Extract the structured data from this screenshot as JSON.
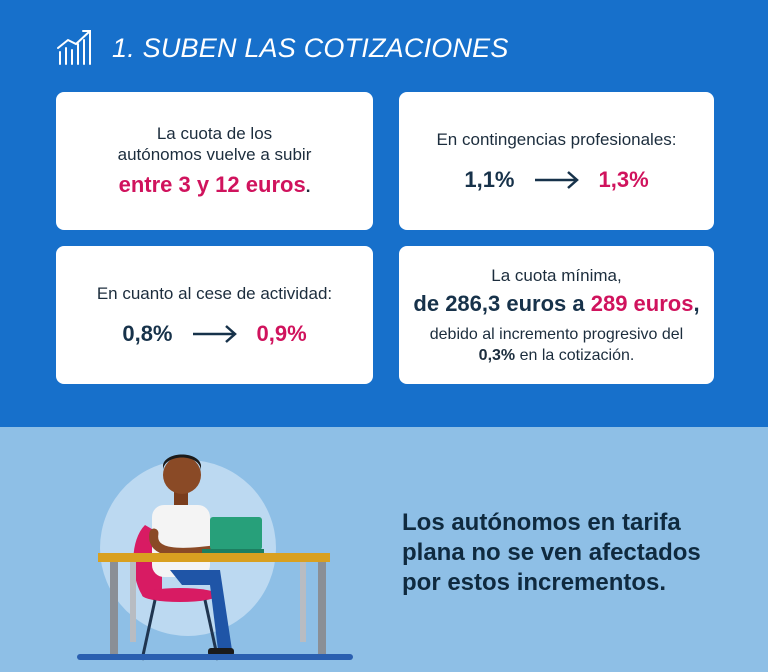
{
  "header": {
    "title": "1. SUBEN LAS COTIZACIONES",
    "icon": "growth-chart-icon"
  },
  "card_cuota": {
    "line1": "La cuota de los",
    "line2": "autónomos vuelve a subir",
    "highlight": "entre 3 y 12 euros",
    "suffix": "."
  },
  "card_contingencias": {
    "label": "En contingencias profesionales:",
    "from": "1,1%",
    "to": "1,3%"
  },
  "card_cese": {
    "label": "En cuanto al cese de actividad:",
    "from": "0,8%",
    "to": "0,9%"
  },
  "card_minima": {
    "line1": "La cuota mínima,",
    "from": "de 286,3 euros a ",
    "to": "289 euros",
    "comma": ",",
    "line3": "debido al incremento progresivo del",
    "pct": "0,3%",
    "line4_rest": " en la cotización."
  },
  "message": "Los autónomos en tarifa plana no se ven afectados por estos incrementos.",
  "colors": {
    "blue": "#1770cb",
    "light_blue": "#8ebfe6",
    "pink": "#d0135d",
    "navy": "#17324a"
  }
}
